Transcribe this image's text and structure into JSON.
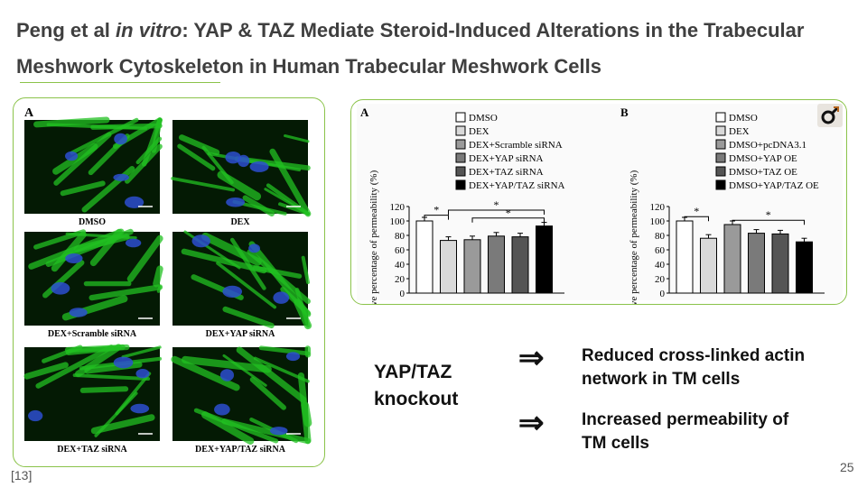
{
  "slide": {
    "title_part1": "Peng et al ",
    "title_italic": "in vitro",
    "title_part2": ": YAP & TAZ Mediate Steroid-Induced Alterations in the Trabecular Meshwork Cytoskeleton in Human Trabecular Meshwork Cells",
    "citation": "[13]",
    "page_number": "25"
  },
  "micrographs": {
    "panel_label": "A",
    "images": [
      {
        "label": "DMSO"
      },
      {
        "label": "DEX"
      },
      {
        "label": "DEX+Scramble siRNA"
      },
      {
        "label": "DEX+YAP siRNA"
      },
      {
        "label": "DEX+TAZ siRNA"
      },
      {
        "label": "DEX+YAP/TAZ siRNA"
      }
    ]
  },
  "summary": {
    "condition": "YAP/TAZ\nknockout",
    "arrow_glyph": "⇒",
    "outcomes": [
      "Reduced cross-linked actin\nnetwork in TM cells",
      "Increased permeability of\nTM cells"
    ]
  },
  "chart_data": [
    {
      "type": "bar",
      "panel": "A",
      "ylabel": "Relative percentage of permeability (%)",
      "ylim": [
        0,
        120
      ],
      "yticks": [
        0,
        20,
        40,
        60,
        80,
        100,
        120
      ],
      "categories": [
        "DMSO",
        "DEX",
        "DEX+Scramble siRNA",
        "DEX+YAP siRNA",
        "DEX+TAZ siRNA",
        "DEX+YAP/TAZ siRNA"
      ],
      "values": [
        100,
        73,
        74,
        79,
        78,
        93
      ],
      "colors": [
        "#ffffff",
        "#d9d9d9",
        "#9a9a9a",
        "#7a7a7a",
        "#555555",
        "#000000"
      ],
      "significance_marker": "*"
    },
    {
      "type": "bar",
      "panel": "B",
      "ylabel": "Relative percentage of permeability (%)",
      "ylim": [
        0,
        120
      ],
      "yticks": [
        0,
        20,
        40,
        60,
        80,
        100,
        120
      ],
      "categories": [
        "DMSO",
        "DEX",
        "DMSO+pcDNA3.1",
        "DMSO+YAP OE",
        "DMSO+TAZ OE",
        "DMSO+YAP/TAZ OE"
      ],
      "values": [
        100,
        76,
        95,
        83,
        82,
        71
      ],
      "colors": [
        "#ffffff",
        "#d9d9d9",
        "#9a9a9a",
        "#7a7a7a",
        "#555555",
        "#000000"
      ],
      "significance_marker": "*"
    }
  ],
  "badge": {
    "icon": "male-symbol-icon",
    "color": "#b5651d"
  },
  "colors": {
    "accent": "#8bc34a",
    "title": "#3f3f3f",
    "stain_green": "#22c022",
    "stain_blue": "#2d4fd0"
  }
}
